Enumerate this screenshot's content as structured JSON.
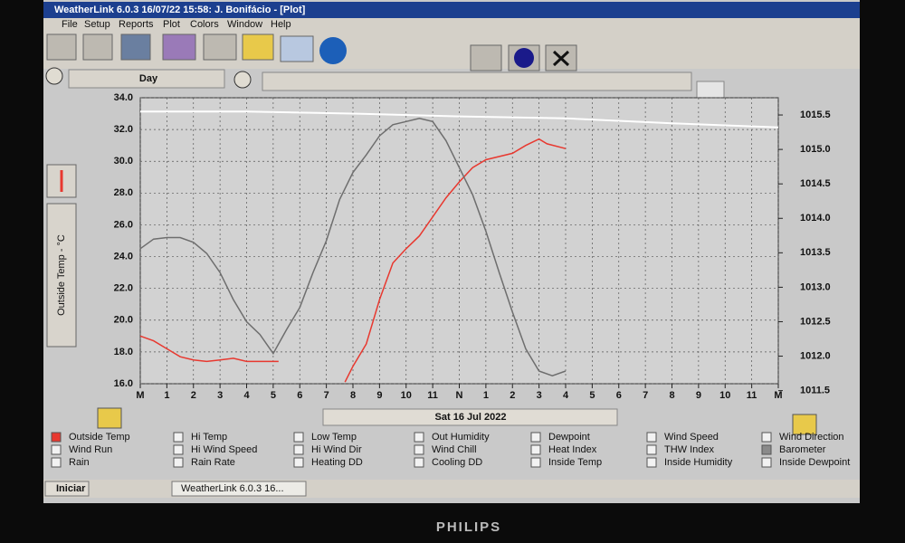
{
  "window": {
    "title": "WeatherLink 6.0.3  16/07/22  15:58: J. Bonifácio - [Plot]",
    "menu": [
      "File",
      "Setup",
      "Reports",
      "Plot",
      "Colors",
      "Window",
      "Help"
    ],
    "span": "Day"
  },
  "chart_data": {
    "type": "line",
    "y_label": "Outside Temp - °C",
    "x_label": "Sat 16 Jul 2022",
    "xlim": [
      0,
      24
    ],
    "xticks": [
      {
        "value": 0,
        "label": "M"
      },
      1,
      2,
      3,
      4,
      5,
      6,
      7,
      8,
      9,
      10,
      11,
      {
        "value": 12,
        "label": "N"
      },
      {
        "value": 13,
        "label": "1"
      },
      {
        "value": 14,
        "label": "2"
      },
      {
        "value": 15,
        "label": "3"
      },
      {
        "value": 16,
        "label": "4"
      },
      {
        "value": 17,
        "label": "5"
      },
      {
        "value": 18,
        "label": "6"
      },
      {
        "value": 19,
        "label": "7"
      },
      {
        "value": 20,
        "label": "8"
      },
      {
        "value": 21,
        "label": "9"
      },
      {
        "value": 22,
        "label": "10"
      },
      {
        "value": 23,
        "label": "11"
      },
      {
        "value": 24,
        "label": "M"
      }
    ],
    "ylim": [
      16,
      34
    ],
    "yticks": [
      {
        "value": 16,
        "label": "16.0"
      },
      {
        "value": 18,
        "label": "18.0"
      },
      {
        "value": 20,
        "label": "20.0"
      },
      {
        "value": 22,
        "label": "22.0"
      },
      {
        "value": 24,
        "label": "24.0"
      },
      {
        "value": 26,
        "label": "26.0"
      },
      {
        "value": 28,
        "label": "28.0"
      },
      {
        "value": 30,
        "label": "30.0"
      },
      {
        "value": 32,
        "label": "32.0"
      },
      {
        "value": 34,
        "label": "34.0"
      }
    ],
    "y2lim": [
      1011.6,
      1015.75
    ],
    "y2ticks": [
      {
        "value": 1011.5,
        "label": "1011.5"
      },
      {
        "value": 1012,
        "label": "1012.0"
      },
      {
        "value": 1012.5,
        "label": "1012.5"
      },
      {
        "value": 1013,
        "label": "1013.0"
      },
      {
        "value": 1013.5,
        "label": "1013.5"
      },
      {
        "value": 1014,
        "label": "1014.0"
      },
      {
        "value": 1014.5,
        "label": "1014.5"
      },
      {
        "value": 1015,
        "label": "1015.0"
      },
      {
        "value": 1015.5,
        "label": "1015.5"
      }
    ],
    "grid": true,
    "series": [
      {
        "name": "Outside Temp",
        "color": "#e8382f",
        "x": [
          0,
          0.5,
          1,
          1.5,
          2,
          2.5,
          3,
          3.5,
          4,
          4.5,
          5.2,
          6.5,
          7.7,
          8,
          8.5,
          9,
          9.5,
          10,
          10.5,
          11,
          11.5,
          12,
          12.5,
          13,
          14,
          14.5,
          15,
          15.3,
          16
        ],
        "values": [
          19.0,
          18.7,
          18.2,
          17.7,
          17.5,
          17.4,
          17.5,
          17.6,
          17.4,
          17.4,
          17.4,
          null,
          16.1,
          17.1,
          18.5,
          21.3,
          23.6,
          24.5,
          25.3,
          26.5,
          27.7,
          28.7,
          29.6,
          30.1,
          30.5,
          31.0,
          31.4,
          31.1,
          30.8
        ]
      },
      {
        "color": "#6e6e6e",
        "x": [
          0,
          0.5,
          1,
          1.5,
          2,
          2.5,
          3,
          3.5,
          4,
          4.5,
          5,
          5.5,
          6,
          6.5,
          7,
          7.5,
          8,
          8.5,
          9,
          9.5,
          10,
          10.5,
          11,
          11.5,
          12,
          12.5,
          13,
          13.5,
          14,
          14.5,
          15,
          15.5,
          16
        ],
        "values": [
          24.5,
          25.1,
          25.2,
          25.2,
          24.9,
          24.2,
          23.0,
          21.3,
          19.9,
          19.1,
          17.9,
          19.4,
          20.8,
          23.0,
          25.0,
          27.6,
          29.3,
          30.4,
          31.6,
          32.3,
          32.5,
          32.7,
          32.5,
          31.3,
          29.6,
          27.9,
          25.6,
          23.0,
          20.5,
          18.2,
          16.8,
          16.5,
          16.8
        ]
      },
      {
        "name": "Barometer",
        "color": "#ffffff",
        "axis": "y2",
        "x": [
          0,
          4,
          8,
          12,
          16,
          20,
          24
        ],
        "values": [
          1015.55,
          1015.55,
          1015.52,
          1015.48,
          1015.45,
          1015.38,
          1015.32
        ]
      }
    ],
    "fields": [
      "Hi Temp",
      "Low Temp",
      "Out Humidity",
      "Dewpoint",
      "Wind Speed",
      "Wind Direction",
      "Wind Run",
      "Hi Wind Speed",
      "Hi Wind Dir",
      "Wind Chill",
      "Heat Index",
      "THW Index",
      "Rain",
      "Rain Rate",
      "Heating DD",
      "Cooling DD",
      "Inside Temp",
      "Inside Humidity",
      "Inside Dewpoint"
    ]
  },
  "taskbar": {
    "start": "Iniciar",
    "task": "WeatherLink 6.0.3  16..."
  },
  "bezel": {
    "brand": "PHILIPS"
  }
}
